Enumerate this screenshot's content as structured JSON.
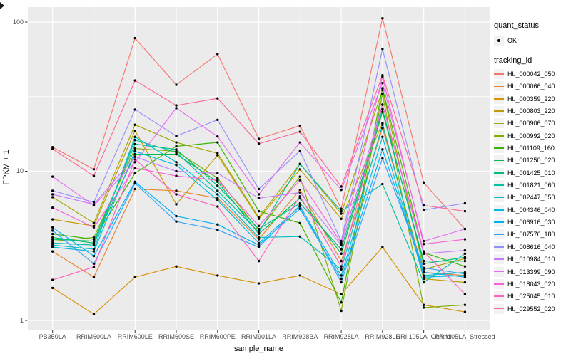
{
  "figure": {
    "background": "#FFFFFF",
    "panel_background": "#EBEBEB",
    "grid_color": "#FFFFFF",
    "tick_color": "#333333",
    "tick_text_color": "#4D4D4D",
    "point_color": "#000000"
  },
  "legend": {
    "quant_status_title": "quant_status",
    "ok_label": "OK",
    "tracking_id_title": "tracking_id"
  },
  "chart_data": {
    "type": "line",
    "title": "",
    "xlabel": "sample_name",
    "ylabel": "FPKM + 1",
    "y_scale": "log10",
    "ylim": [
      1,
      120
    ],
    "grid": true,
    "legend_position": "right",
    "y_ticks": [
      {
        "label": "100",
        "value": 100
      },
      {
        "label": "10",
        "value": 10
      },
      {
        "label": "1",
        "value": 1
      }
    ],
    "y_minor_gridlines": [
      3.162,
      31.62
    ],
    "categories": [
      "PB350LA",
      "RRIM600LA",
      "RRIM600LE",
      "RRIM600SE",
      "RRIM600PE",
      "RRIM901LA",
      "RRIM928BA",
      "RRIM928LA",
      "RRIM928LE",
      "RRII105LA_Control",
      "RRII105LA_Stressed"
    ],
    "series": [
      {
        "name": "Hb_000042_050",
        "color": "#F8766D",
        "values": [
          14.5,
          10.3,
          78,
          38,
          61,
          16.5,
          20.2,
          5.6,
          106,
          8.4,
          4.1
        ]
      },
      {
        "name": "Hb_000066_040",
        "color": "#EA8331",
        "values": [
          2.9,
          1.95,
          7.6,
          7.4,
          6.6,
          3.5,
          7.5,
          2.5,
          19.5,
          2.1,
          2.0
        ]
      },
      {
        "name": "Hb_000359_220",
        "color": "#D89000",
        "values": [
          1.65,
          1.1,
          1.95,
          2.3,
          2.0,
          1.77,
          2.0,
          1.5,
          3.1,
          1.27,
          1.14
        ]
      },
      {
        "name": "Hb_000803_220",
        "color": "#C09B00",
        "values": [
          4.76,
          4.3,
          18.7,
          6.0,
          12.8,
          4.8,
          10.3,
          4.8,
          21,
          1.9,
          1.8
        ]
      },
      {
        "name": "Hb_000906_070",
        "color": "#A3A500",
        "values": [
          6.7,
          4.5,
          20.5,
          15.6,
          13.2,
          4.9,
          11.2,
          5.2,
          35,
          2.2,
          2.6
        ]
      },
      {
        "name": "Hb_000992_020",
        "color": "#7CAE00",
        "values": [
          3.4,
          3.6,
          14.2,
          13.6,
          9.0,
          4.0,
          9.2,
          1.16,
          33,
          1.22,
          1.27
        ]
      },
      {
        "name": "Hb_001109_160",
        "color": "#39B600",
        "values": [
          3.8,
          3.5,
          9.7,
          14.7,
          15.6,
          5.4,
          4.5,
          1.32,
          36,
          2.85,
          2.3
        ]
      },
      {
        "name": "Hb_001250_020",
        "color": "#00BB4E",
        "values": [
          3.6,
          3.3,
          13.0,
          13.0,
          8.5,
          3.8,
          6.6,
          2.8,
          25,
          2.5,
          2.5
        ]
      },
      {
        "name": "Hb_001425_010",
        "color": "#00BF7D",
        "values": [
          3.5,
          3.4,
          15.2,
          14.0,
          8.0,
          4.1,
          6.1,
          3.0,
          26,
          2.4,
          2.65
        ]
      },
      {
        "name": "Hb_001821_060",
        "color": "#00C1A3",
        "values": [
          3.3,
          3.2,
          16.2,
          13.4,
          7.4,
          3.9,
          11.2,
          5.4,
          8.2,
          1.8,
          2.8
        ]
      },
      {
        "name": "Hb_002447_050",
        "color": "#00BFC4",
        "values": [
          3.2,
          3.0,
          17.0,
          11.5,
          7.0,
          3.6,
          3.65,
          2.2,
          20.5,
          2.0,
          2.1
        ]
      },
      {
        "name": "Hb_004346_040",
        "color": "#00BAE0",
        "values": [
          3.1,
          2.9,
          13.6,
          11.0,
          6.4,
          3.3,
          5.8,
          2.0,
          17,
          1.95,
          2.0
        ]
      },
      {
        "name": "Hb_006916_030",
        "color": "#00B0F6",
        "values": [
          4.2,
          2.7,
          8.5,
          5.0,
          4.4,
          3.2,
          5.6,
          1.9,
          14,
          2.1,
          1.95
        ]
      },
      {
        "name": "Hb_007576_180",
        "color": "#35A2FF",
        "values": [
          4.0,
          2.4,
          8.3,
          4.6,
          4.05,
          3.1,
          5.9,
          1.8,
          12.2,
          2.25,
          2.05
        ]
      },
      {
        "name": "Hb_008616_040",
        "color": "#9590FF",
        "values": [
          7.4,
          6.2,
          25.9,
          17.2,
          22.1,
          7.6,
          13.7,
          3.4,
          66,
          5.5,
          6.1
        ]
      },
      {
        "name": "Hb_010984_010",
        "color": "#C77CFF",
        "values": [
          7.0,
          6.0,
          12.5,
          10.0,
          9.7,
          6.6,
          7.2,
          3.2,
          28,
          2.8,
          2.95
        ]
      },
      {
        "name": "Hb_013399_090",
        "color": "#E76BF3",
        "values": [
          9.2,
          5.9,
          11.5,
          26.5,
          17.1,
          7.0,
          15.6,
          7.5,
          39,
          3.4,
          4.1
        ]
      },
      {
        "name": "Hb_018043_020",
        "color": "#FA62DB",
        "values": [
          5.7,
          4.2,
          10.5,
          9.3,
          8.7,
          4.3,
          8.7,
          3.3,
          43,
          3.25,
          3.5
        ]
      },
      {
        "name": "Hb_025045_010",
        "color": "#FF62BC",
        "values": [
          1.87,
          2.28,
          12.0,
          7.0,
          5.8,
          2.5,
          6.8,
          2.3,
          27.9,
          2.9,
          1.5
        ]
      },
      {
        "name": "Hb_029552_020",
        "color": "#FF6A98",
        "values": [
          14.1,
          9.3,
          40.6,
          27.6,
          30.8,
          15.3,
          18.4,
          7.9,
          44,
          5.9,
          5.4
        ]
      }
    ]
  }
}
